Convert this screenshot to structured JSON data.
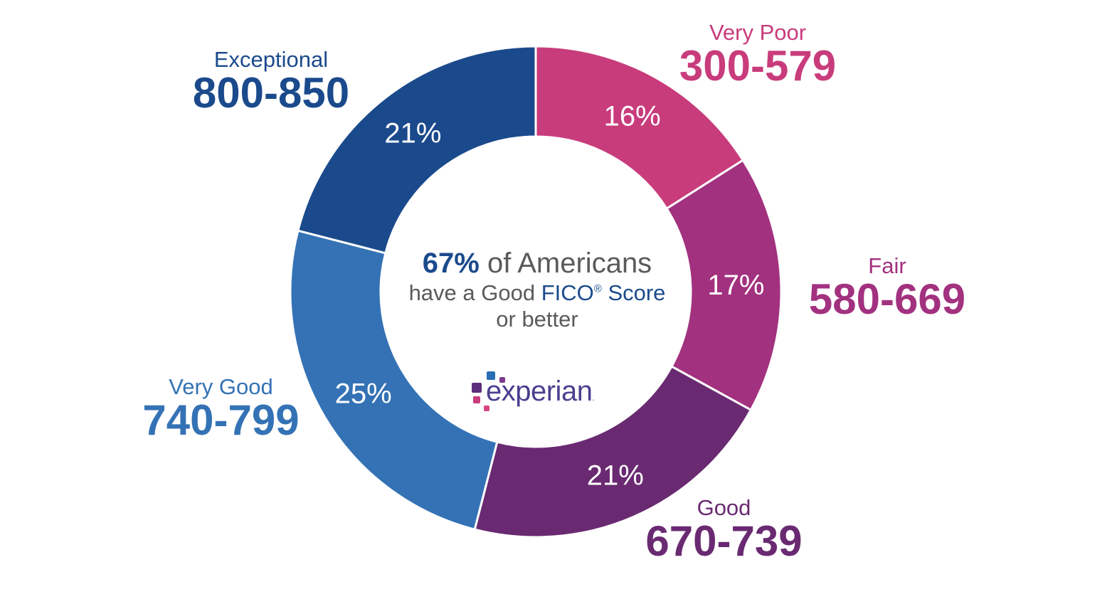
{
  "chart_data": {
    "type": "pie",
    "categories": [
      "Very Poor",
      "Fair",
      "Good",
      "Very Good",
      "Exceptional"
    ],
    "ranges": [
      "300-579",
      "580-669",
      "670-739",
      "740-799",
      "800-850"
    ],
    "values": [
      16,
      17,
      21,
      25,
      21
    ],
    "value_labels": [
      "16%",
      "17%",
      "21%",
      "25%",
      "21%"
    ],
    "colors": [
      "#c83c7c",
      "#a2317f",
      "#6a2a72",
      "#3472b5",
      "#1b4a8c"
    ]
  },
  "center": {
    "highlight": "67%",
    "line1_rest": " of Americans",
    "line2_prefix": "have a Good ",
    "line2_brand": "FICO",
    "line2_reg": "®",
    "line2_suffix": " Score",
    "line3": "or better"
  },
  "logo": {
    "word": "experian",
    "dot": "."
  }
}
